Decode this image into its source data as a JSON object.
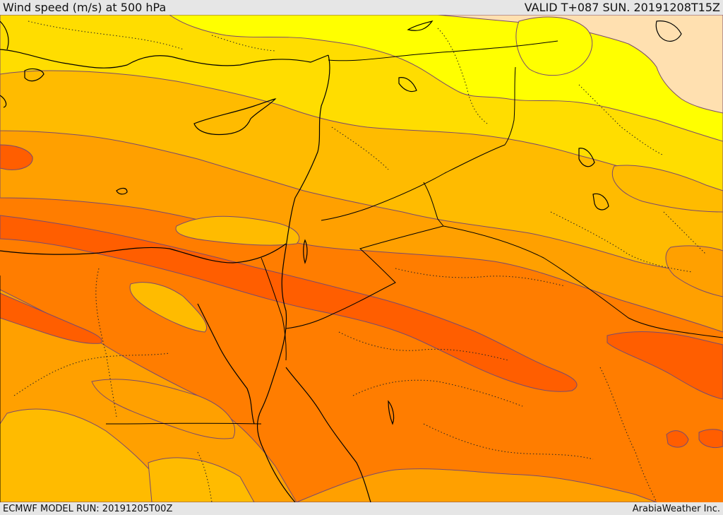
{
  "header": {
    "title": "Wind speed (m/s) at 500 hPa",
    "valid_time": "VALID T+087 SUN. 20191208T15Z"
  },
  "footer": {
    "model_run": "ECMWF MODEL RUN: 20191205T00Z",
    "credit": "ArabiaWeather Inc."
  },
  "colors": {
    "band_lightest": "#ffe0b0",
    "band_yellow": "#ffff00",
    "band_gold": "#ffdd00",
    "band_amber": "#ffbb00",
    "band_orange_light": "#ffa000",
    "band_orange": "#ff7d00",
    "band_red_orange": "#ff5e00",
    "contour_line": "#7a4a6e",
    "coastline": "#000000"
  }
}
